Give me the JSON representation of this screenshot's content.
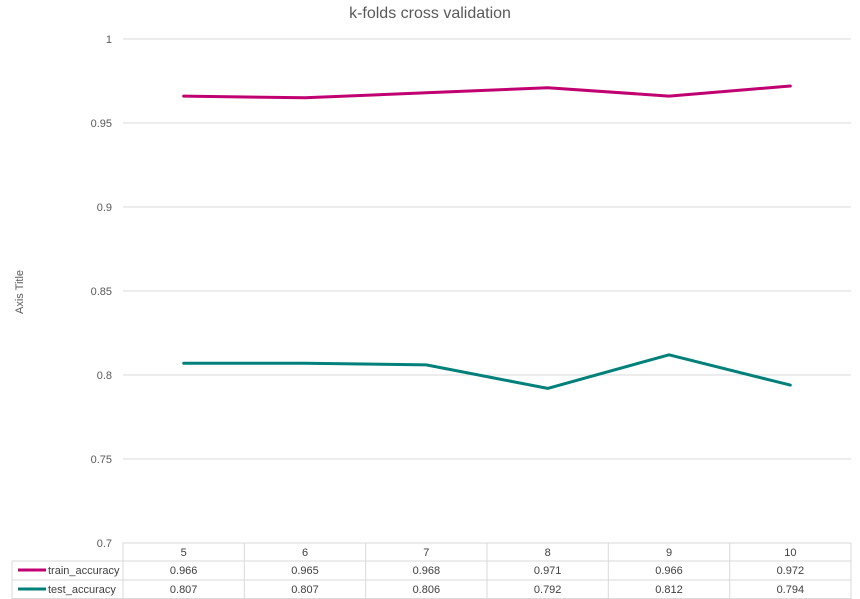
{
  "chart_data": {
    "type": "line",
    "title": "k-folds cross validation",
    "xlabel": "",
    "ylabel": "Axis Title",
    "categories": [
      "5",
      "6",
      "7",
      "8",
      "9",
      "10"
    ],
    "series": [
      {
        "name": "train_accuracy",
        "values": [
          0.966,
          0.965,
          0.968,
          0.971,
          0.966,
          0.972
        ],
        "value_labels": [
          "0.966",
          "0.965",
          "0.968",
          "0.971",
          "0.966",
          "0.972"
        ],
        "color": "#C00070"
      },
      {
        "name": "test_accuracy",
        "values": [
          0.807,
          0.807,
          0.806,
          0.792,
          0.812,
          0.794
        ],
        "value_labels": [
          "0.807",
          "0.807",
          "0.806",
          "0.792",
          "0.812",
          "0.794"
        ],
        "color": "#00807A"
      }
    ],
    "yticks": [
      "0.7",
      "0.75",
      "0.8",
      "0.85",
      "0.9",
      "0.95",
      "1"
    ],
    "ylim": [
      0.7,
      1
    ],
    "grid": true,
    "data_table": true,
    "gridline_color": "#D9D9D9"
  }
}
